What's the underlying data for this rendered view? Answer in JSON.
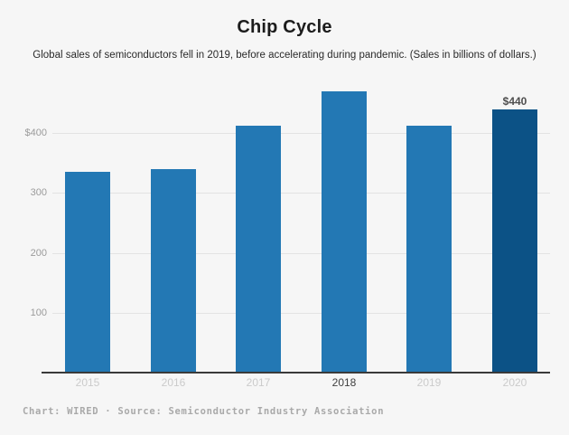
{
  "header": {
    "title": "Chip Cycle",
    "subtitle": "Global sales of semiconductors fell in 2019, before accelerating during pandemic. (Sales in billions of dollars.)"
  },
  "chart_data": {
    "type": "bar",
    "categories": [
      "2015",
      "2016",
      "2017",
      "2018",
      "2019",
      "2020"
    ],
    "values": [
      335,
      339,
      412,
      469,
      412,
      440
    ],
    "title": "Chip Cycle",
    "xlabel": "",
    "ylabel": "Sales in billions of dollars",
    "ylim": [
      0,
      480
    ],
    "yticks": [
      {
        "value": 100,
        "label": "100"
      },
      {
        "value": 200,
        "label": "200"
      },
      {
        "value": 300,
        "label": "300"
      },
      {
        "value": 400,
        "label": "$400"
      }
    ],
    "grid": true,
    "legend": false,
    "bar_color": "#2378b4",
    "highlight_bar_color": "#0c5286",
    "highlight_index": 5,
    "emphasized_xtick_index": 3,
    "annotations": [
      {
        "index": 5,
        "text": "$440"
      }
    ]
  },
  "footer": {
    "text": "Chart: WIRED · Source: Semiconductor Industry Association"
  },
  "theme": {
    "background": "#f6f6f6",
    "gridline": "#e3e3e3",
    "axis_line": "#3a3a3a",
    "xtick_color": "#cbcbcb",
    "xtick_emphasis_color": "#3f3f3f",
    "ytick_color": "#9b9b9b",
    "annotation_color": "#4e4e4e",
    "title_color": "#1c1c1c",
    "subtitle_color": "#2a2a2a",
    "footer_color": "#a9a9a9"
  }
}
